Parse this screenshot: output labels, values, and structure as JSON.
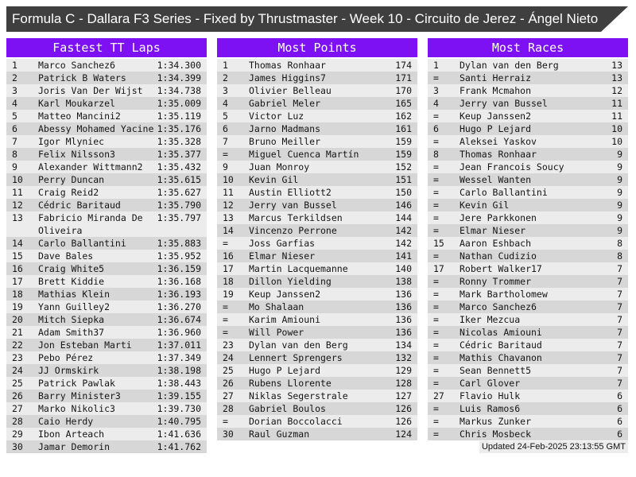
{
  "window": {
    "title": "Formula C - Dallara F3 Series - Fixed by Thrustmaster - Week 10 - Circuito de Jerez - Ángel Nieto"
  },
  "colors": {
    "accent_purple": "#7e11f3",
    "titlebar_gray": "#3f3f3f",
    "row_light": "#ececec",
    "row_dark": "#d7d7d7"
  },
  "footer": {
    "updated": "Updated 24-Feb-2025 23:13:55 GMT"
  },
  "boards": [
    {
      "title": "Fastest TT Laps",
      "rows": [
        {
          "rank": "1",
          "name": "Marco Sanchez6",
          "value": "1:34.300"
        },
        {
          "rank": "2",
          "name": "Patrick B Waters",
          "value": "1:34.399"
        },
        {
          "rank": "3",
          "name": "Joris Van Der Wijst",
          "value": "1:34.738"
        },
        {
          "rank": "4",
          "name": "Karl Moukarzel",
          "value": "1:35.009"
        },
        {
          "rank": "5",
          "name": "Matteo Mancini2",
          "value": "1:35.119"
        },
        {
          "rank": "6",
          "name": "Abessy Mohamed Yacine",
          "value": "1:35.176"
        },
        {
          "rank": "7",
          "name": "Igor Mlyniec",
          "value": "1:35.328"
        },
        {
          "rank": "8",
          "name": "Felix Nilsson3",
          "value": "1:35.377"
        },
        {
          "rank": "9",
          "name": "Alexander Wittmann2",
          "value": "1:35.432"
        },
        {
          "rank": "10",
          "name": "Perry Duncan",
          "value": "1:35.615"
        },
        {
          "rank": "11",
          "name": "Craig Reid2",
          "value": "1:35.627"
        },
        {
          "rank": "12",
          "name": "Cédric Baritaud",
          "value": "1:35.790"
        },
        {
          "rank": "13",
          "name": "Fabricio Miranda De Oliveira",
          "value": "1:35.797"
        },
        {
          "rank": "14",
          "name": "Carlo Ballantini",
          "value": "1:35.883"
        },
        {
          "rank": "15",
          "name": "Dave Bales",
          "value": "1:35.952"
        },
        {
          "rank": "16",
          "name": "Craig White5",
          "value": "1:36.159"
        },
        {
          "rank": "17",
          "name": "Brett Kiddie",
          "value": "1:36.168"
        },
        {
          "rank": "18",
          "name": "Mathias Klein",
          "value": "1:36.193"
        },
        {
          "rank": "19",
          "name": "Yann Guilley2",
          "value": "1:36.270"
        },
        {
          "rank": "20",
          "name": "Mitch Siepka",
          "value": "1:36.674"
        },
        {
          "rank": "21",
          "name": "Adam Smith37",
          "value": "1:36.960"
        },
        {
          "rank": "22",
          "name": "Jon Esteban Marti",
          "value": "1:37.011"
        },
        {
          "rank": "23",
          "name": "Pebo Pérez",
          "value": "1:37.349"
        },
        {
          "rank": "24",
          "name": "JJ Ormskirk",
          "value": "1:38.198"
        },
        {
          "rank": "25",
          "name": "Patrick Pawlak",
          "value": "1:38.443"
        },
        {
          "rank": "26",
          "name": "Barry Minister3",
          "value": "1:39.155"
        },
        {
          "rank": "27",
          "name": "Marko Nikolic3",
          "value": "1:39.730"
        },
        {
          "rank": "28",
          "name": "Caio Herdy",
          "value": "1:40.795"
        },
        {
          "rank": "29",
          "name": "Ibon Arteach",
          "value": "1:41.636"
        },
        {
          "rank": "30",
          "name": "Jamar Demorin",
          "value": "1:41.762"
        }
      ]
    },
    {
      "title": "Most Points",
      "rows": [
        {
          "rank": "1",
          "name": "Thomas Ronhaar",
          "value": "174"
        },
        {
          "rank": "2",
          "name": "James Higgins7",
          "value": "171"
        },
        {
          "rank": "3",
          "name": "Olivier Belleau",
          "value": "170"
        },
        {
          "rank": "4",
          "name": "Gabriel Meler",
          "value": "165"
        },
        {
          "rank": "5",
          "name": "Victor Luz",
          "value": "162"
        },
        {
          "rank": "6",
          "name": "Jarno Madmans",
          "value": "161"
        },
        {
          "rank": "7",
          "name": "Bruno Meiller",
          "value": "159"
        },
        {
          "rank": "=",
          "name": "Miguel Cuenca Martín",
          "value": "159"
        },
        {
          "rank": "9",
          "name": "Juan Monroy",
          "value": "152"
        },
        {
          "rank": "10",
          "name": "Kevin Gil",
          "value": "151"
        },
        {
          "rank": "11",
          "name": "Austin Elliott2",
          "value": "150"
        },
        {
          "rank": "12",
          "name": "Jerry van Bussel",
          "value": "146"
        },
        {
          "rank": "13",
          "name": "Marcus Terkildsen",
          "value": "144"
        },
        {
          "rank": "14",
          "name": "Vincenzo Perrone",
          "value": "142"
        },
        {
          "rank": "=",
          "name": "Joss Garfias",
          "value": "142"
        },
        {
          "rank": "16",
          "name": "Elmar Nieser",
          "value": "141"
        },
        {
          "rank": "17",
          "name": "Martin Lacquemanne",
          "value": "140"
        },
        {
          "rank": "18",
          "name": "Dillon Yielding",
          "value": "138"
        },
        {
          "rank": "19",
          "name": "Keup Janssen2",
          "value": "136"
        },
        {
          "rank": "=",
          "name": "Mo Shalaan",
          "value": "136"
        },
        {
          "rank": "=",
          "name": "Karim Amiouni",
          "value": "136"
        },
        {
          "rank": "=",
          "name": "Will Power",
          "value": "136"
        },
        {
          "rank": "23",
          "name": "Dylan van den Berg",
          "value": "134"
        },
        {
          "rank": "24",
          "name": "Lennert Sprengers",
          "value": "132"
        },
        {
          "rank": "25",
          "name": "Hugo P Lejard",
          "value": "129"
        },
        {
          "rank": "26",
          "name": "Rubens Llorente",
          "value": "128"
        },
        {
          "rank": "27",
          "name": "Niklas Segerstrale",
          "value": "127"
        },
        {
          "rank": "28",
          "name": "Gabriel Boulos",
          "value": "126"
        },
        {
          "rank": "=",
          "name": "Dorian Boccolacci",
          "value": "126"
        },
        {
          "rank": "30",
          "name": "Raul Guzman",
          "value": "124"
        }
      ]
    },
    {
      "title": "Most Races",
      "rows": [
        {
          "rank": "1",
          "name": "Dylan van den Berg",
          "value": "13"
        },
        {
          "rank": "=",
          "name": "Santi Herraiz",
          "value": "13"
        },
        {
          "rank": "3",
          "name": "Frank Mcmahon",
          "value": "12"
        },
        {
          "rank": "4",
          "name": "Jerry van Bussel",
          "value": "11"
        },
        {
          "rank": "=",
          "name": "Keup Janssen2",
          "value": "11"
        },
        {
          "rank": "6",
          "name": "Hugo P Lejard",
          "value": "10"
        },
        {
          "rank": "=",
          "name": "Aleksei Yaskov",
          "value": "10"
        },
        {
          "rank": "8",
          "name": "Thomas Ronhaar",
          "value": "9"
        },
        {
          "rank": "=",
          "name": "Jean Francois Soucy",
          "value": "9"
        },
        {
          "rank": "=",
          "name": "Wessel Wanten",
          "value": "9"
        },
        {
          "rank": "=",
          "name": "Carlo Ballantini",
          "value": "9"
        },
        {
          "rank": "=",
          "name": "Kevin Gil",
          "value": "9"
        },
        {
          "rank": "=",
          "name": "Jere Parkkonen",
          "value": "9"
        },
        {
          "rank": "=",
          "name": "Elmar Nieser",
          "value": "9"
        },
        {
          "rank": "15",
          "name": "Aaron Eshbach",
          "value": "8"
        },
        {
          "rank": "=",
          "name": "Nathan Cudizio",
          "value": "8"
        },
        {
          "rank": "17",
          "name": "Robert Walker17",
          "value": "7"
        },
        {
          "rank": "=",
          "name": "Ronny Trommer",
          "value": "7"
        },
        {
          "rank": "=",
          "name": "Mark Bartholomew",
          "value": "7"
        },
        {
          "rank": "=",
          "name": "Marco Sanchez6",
          "value": "7"
        },
        {
          "rank": "=",
          "name": "Iker Mezcua",
          "value": "7"
        },
        {
          "rank": "=",
          "name": "Nicolas Amiouni",
          "value": "7"
        },
        {
          "rank": "=",
          "name": "Cédric Baritaud",
          "value": "7"
        },
        {
          "rank": "=",
          "name": "Mathis Chavanon",
          "value": "7"
        },
        {
          "rank": "=",
          "name": "Sean Bennett5",
          "value": "7"
        },
        {
          "rank": "=",
          "name": "Carl Glover",
          "value": "7"
        },
        {
          "rank": "27",
          "name": "Flavio Hulk",
          "value": "6"
        },
        {
          "rank": "=",
          "name": "Luis Ramos6",
          "value": "6"
        },
        {
          "rank": "=",
          "name": "Markus Zunker",
          "value": "6"
        },
        {
          "rank": "=",
          "name": "Chris Mosbeck",
          "value": "6"
        }
      ]
    }
  ]
}
